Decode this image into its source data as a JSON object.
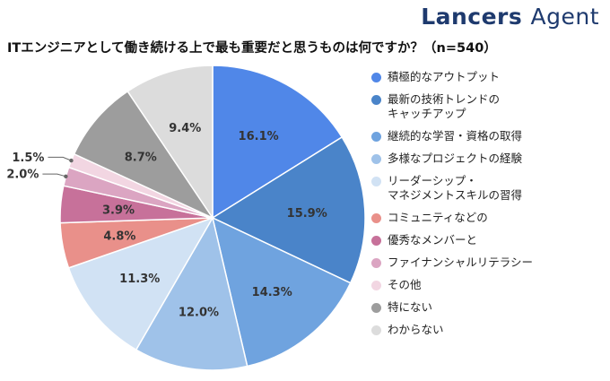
{
  "header": {
    "brand_name": "Lancers",
    "brand_suffix": "Agent",
    "question": "ITエンジニアとして働き続ける上で最も重要だと思うものは何ですか？（n=540）"
  },
  "chart_data": {
    "type": "pie",
    "title": "ITエンジニアとして働き続ける上で最も重要だと思うものは何ですか？（n=540）",
    "n": 540,
    "start_angle_deg": 0,
    "direction": "clockwise",
    "legend_position": "right",
    "slices": [
      {
        "label": "積極的なアウトプット",
        "value": 16.1,
        "display": "16.1%",
        "color": "#5087e8"
      },
      {
        "label": "最新の技術トレンドの\nキャッチアップ",
        "value": 15.9,
        "display": "15.9%",
        "color": "#4a84c9"
      },
      {
        "label": "継続的な学習・資格の取得",
        "value": 14.3,
        "display": "14.3%",
        "color": "#6fa3df"
      },
      {
        "label": "多様なプロジェクトの経験",
        "value": 12.0,
        "display": "12.0%",
        "color": "#9fc2e9"
      },
      {
        "label": "リーダーシップ・\nマネジメントスキルの習得",
        "value": 11.3,
        "display": "11.3%",
        "color": "#d1e2f4"
      },
      {
        "label": "コミュニティなどの",
        "value": 4.8,
        "display": "4.8%",
        "color": "#e9908a"
      },
      {
        "label": "優秀なメンバーと",
        "value": 3.9,
        "display": "3.9%",
        "color": "#c7719a"
      },
      {
        "label": "ファイナンシャルリテラシー",
        "value": 2.0,
        "display": "2.0%",
        "color": "#dba5c2"
      },
      {
        "label": "その他",
        "value": 1.5,
        "display": "1.5%",
        "color": "#f2d6e2"
      },
      {
        "label": "特にない",
        "value": 8.7,
        "display": "8.7%",
        "color": "#9d9d9d"
      },
      {
        "label": "わからない",
        "value": 9.4,
        "display": "9.4%",
        "color": "#dcdcdc"
      }
    ]
  }
}
